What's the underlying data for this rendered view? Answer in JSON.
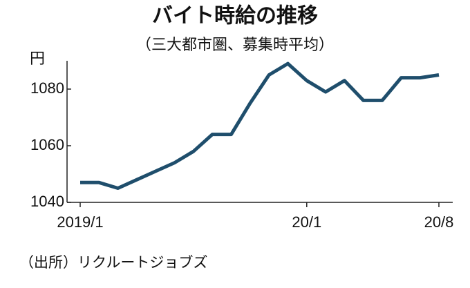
{
  "chart_data": {
    "type": "line",
    "title": "バイト時給の推移",
    "subtitle": "（三大都市圏、募集時平均）",
    "y_label": "円",
    "source": "（出所）リクルートジョブズ",
    "categories": [
      "2019/1",
      null,
      null,
      null,
      null,
      null,
      null,
      null,
      null,
      null,
      null,
      null,
      "20/1",
      null,
      null,
      null,
      null,
      null,
      null,
      "20/8"
    ],
    "series": [
      {
        "color": "#1f4e6c",
        "values": [
          1047,
          1047,
          1045,
          1048,
          1051,
          1054,
          1058,
          1064,
          1064,
          1075,
          1085,
          1089,
          1083,
          1079,
          1083,
          1076,
          1076,
          1084,
          1084,
          1085
        ]
      }
    ],
    "ylim": [
      1040,
      1090
    ],
    "yticks": [
      1040,
      1060,
      1080
    ]
  }
}
